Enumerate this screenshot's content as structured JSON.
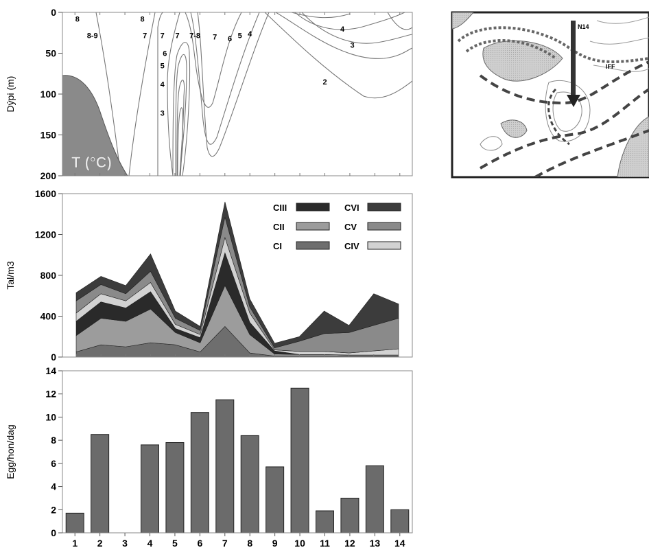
{
  "chart_data": [
    {
      "type": "contour",
      "ylabel": "Dýpi (m)",
      "annotation": "T (°C)",
      "yticks": [
        0,
        50,
        100,
        150,
        200
      ],
      "ylim": [
        0,
        200
      ],
      "xlim": [
        0.5,
        14.5
      ],
      "contour_labels": [
        {
          "text": "8",
          "x": 1.1,
          "y": 8
        },
        {
          "text": "8-9",
          "x": 1.7,
          "y": 28
        },
        {
          "text": "8",
          "x": 3.7,
          "y": 8
        },
        {
          "text": "7",
          "x": 3.8,
          "y": 28
        },
        {
          "text": "7",
          "x": 4.5,
          "y": 28
        },
        {
          "text": "7",
          "x": 5.1,
          "y": 28
        },
        {
          "text": "7-8",
          "x": 5.8,
          "y": 28
        },
        {
          "text": "7",
          "x": 6.6,
          "y": 30
        },
        {
          "text": "6",
          "x": 7.2,
          "y": 32
        },
        {
          "text": "5",
          "x": 7.6,
          "y": 28
        },
        {
          "text": "4",
          "x": 8.0,
          "y": 26
        },
        {
          "text": "6",
          "x": 4.6,
          "y": 50
        },
        {
          "text": "5",
          "x": 4.5,
          "y": 65
        },
        {
          "text": "4",
          "x": 4.5,
          "y": 88
        },
        {
          "text": "3",
          "x": 4.5,
          "y": 123
        },
        {
          "text": "4",
          "x": 11.7,
          "y": 20
        },
        {
          "text": "3",
          "x": 12.1,
          "y": 40
        },
        {
          "text": "2",
          "x": 11.0,
          "y": 85
        }
      ]
    },
    {
      "type": "area",
      "stacked": true,
      "ylabel": "Tal/m3",
      "yticks": [
        0,
        400,
        800,
        1200,
        1600
      ],
      "ylim": [
        0,
        1600
      ],
      "x": [
        1,
        2,
        3,
        4,
        5,
        6,
        7,
        8,
        9,
        10,
        11,
        12,
        13,
        14
      ],
      "legend": [
        "CIII",
        "CVI",
        "CII",
        "CV",
        "CI",
        "CIV"
      ],
      "series": [
        {
          "name": "CI",
          "color": "#6e6e6e",
          "values": [
            50,
            120,
            100,
            140,
            120,
            50,
            300,
            40,
            10,
            10,
            10,
            10,
            10,
            10
          ]
        },
        {
          "name": "CII",
          "color": "#9c9c9c",
          "values": [
            160,
            260,
            250,
            330,
            120,
            90,
            400,
            180,
            20,
            15,
            15,
            10,
            10,
            10
          ]
        },
        {
          "name": "CIII",
          "color": "#2a2a2a",
          "values": [
            140,
            160,
            130,
            170,
            40,
            50,
            320,
            120,
            30,
            0,
            0,
            0,
            0,
            0
          ]
        },
        {
          "name": "CIV",
          "color": "#d2d2d2",
          "values": [
            80,
            80,
            70,
            90,
            40,
            30,
            150,
            90,
            10,
            30,
            30,
            20,
            40,
            60
          ]
        },
        {
          "name": "CV",
          "color": "#8a8a8a",
          "values": [
            120,
            90,
            70,
            110,
            60,
            40,
            200,
            60,
            20,
            100,
            175,
            200,
            250,
            300
          ]
        },
        {
          "name": "CVI",
          "color": "#3c3c3c",
          "values": [
            80,
            80,
            80,
            170,
            70,
            40,
            150,
            80,
            45,
            45,
            220,
            70,
            310,
            140
          ]
        }
      ]
    },
    {
      "type": "bar",
      "ylabel": "Egg/hon/dag",
      "yticks": [
        0,
        2,
        4,
        6,
        8,
        10,
        12,
        14
      ],
      "ylim": [
        0,
        14
      ],
      "categories": [
        "1",
        "2",
        "3",
        "4",
        "5",
        "6",
        "7",
        "8",
        "9",
        "10",
        "11",
        "12",
        "13",
        "14"
      ],
      "values": [
        1.7,
        8.5,
        0,
        7.6,
        7.8,
        10.4,
        11.5,
        8.4,
        5.7,
        12.5,
        1.9,
        3.0,
        5.8,
        2.0
      ],
      "color": "#6b6b6b"
    }
  ],
  "map": {
    "station_label": "N14",
    "front_label": "IFF"
  }
}
